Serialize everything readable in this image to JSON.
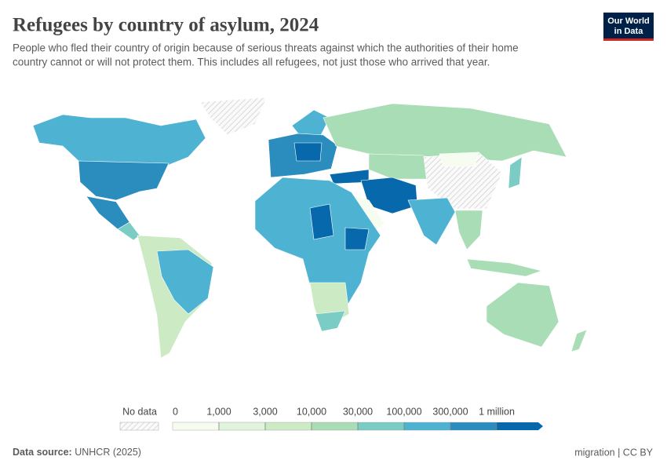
{
  "header": {
    "title": "Refugees by country of asylum, 2024",
    "subtitle": [
      "People who fled their country of origin because of serious threats against which the authorities of their home",
      "country cannot or will not protect them. This includes all refugees, not just those who arrived that year."
    ],
    "logo": [
      "Our World",
      "in Data"
    ]
  },
  "legend": {
    "no_data": "No data",
    "labels": [
      "0",
      "1,000",
      "3,000",
      "10,000",
      "30,000",
      "100,000",
      "300,000",
      "1 million"
    ],
    "colors": [
      "#f7fcf0",
      "#e0f3db",
      "#ccebc5",
      "#a8ddb5",
      "#7bccc4",
      "#4eb3d3",
      "#2b8cbe",
      "#0868ac"
    ]
  },
  "footer": {
    "source_label": "Data source:",
    "source": "UNHCR (2025)",
    "license": "migration | CC BY"
  }
}
